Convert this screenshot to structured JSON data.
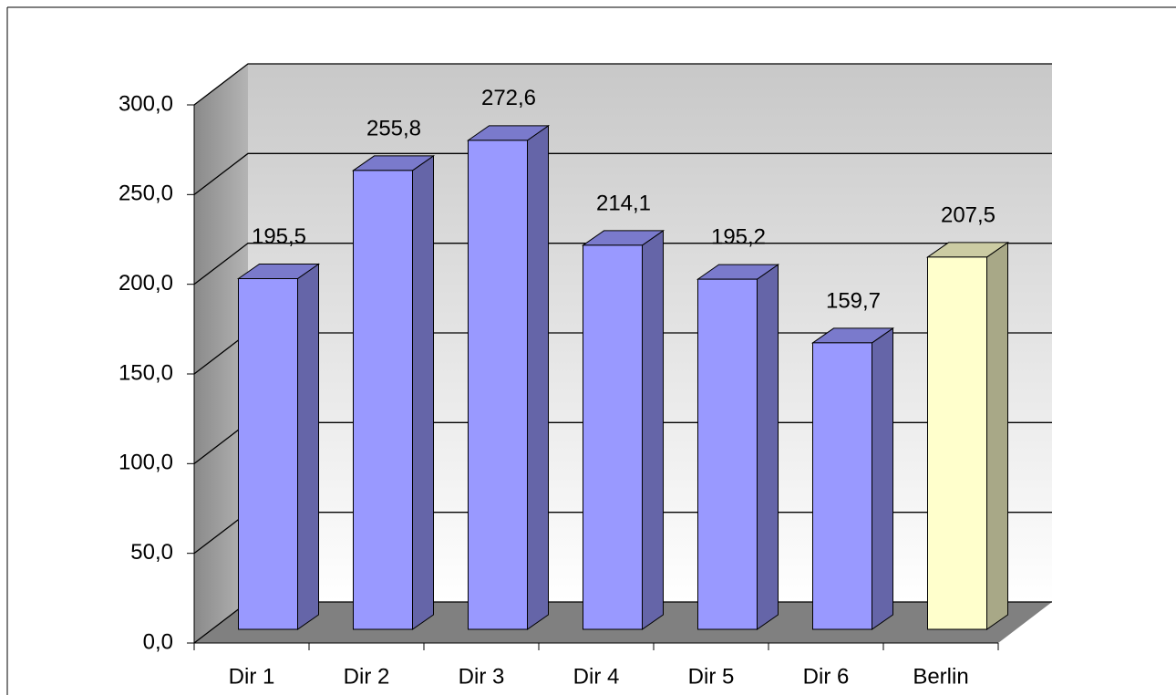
{
  "chart_data": {
    "type": "bar3d",
    "categories": [
      "Dir 1",
      "Dir 2",
      "Dir 3",
      "Dir 4",
      "Dir 5",
      "Dir 6",
      "Berlin"
    ],
    "values": [
      195.5,
      255.8,
      272.6,
      214.1,
      195.2,
      159.7,
      207.5
    ],
    "value_labels": [
      "195,5",
      "255,8",
      "272,6",
      "214,1",
      "195,2",
      "159,7",
      "207,5"
    ],
    "colors": [
      "#9999ff",
      "#9999ff",
      "#9999ff",
      "#9999ff",
      "#9999ff",
      "#9999ff",
      "#ffffcc"
    ],
    "ylim": [
      0,
      300
    ],
    "yticks": [
      {
        "value": 0,
        "label": "0,0"
      },
      {
        "value": 50,
        "label": "50,0"
      },
      {
        "value": 100,
        "label": "100,0"
      },
      {
        "value": 150,
        "label": "150,0"
      },
      {
        "value": 200,
        "label": "200,0"
      },
      {
        "value": 250,
        "label": "250,0"
      },
      {
        "value": 300,
        "label": "300,0"
      }
    ],
    "grid": true
  }
}
